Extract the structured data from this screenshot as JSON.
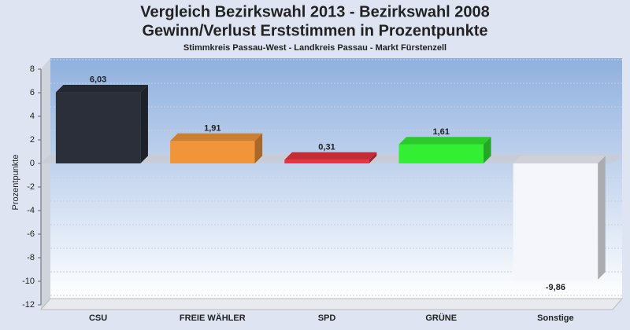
{
  "chart_data": {
    "type": "bar",
    "title": "Vergleich Bezirkswahl 2013 - Bezirkswahl 2008",
    "subtitle": "Gewinn/Verlust Erststimmen in Prozentpunkte",
    "caption": "Stimmkreis Passau-West - Landkreis Passau - Markt Fürstenzell",
    "y_label": "Prozentpunkte",
    "categories": [
      "CSU",
      "FREIE WÄHLER",
      "SPD",
      "GRÜNE",
      "Sonstige"
    ],
    "values": [
      6.03,
      1.91,
      0.31,
      1.61,
      -9.86
    ],
    "value_labels": [
      "6,03",
      "1,91",
      "0,31",
      "1,61",
      "-9,86"
    ],
    "colors": [
      "#2a2f3a",
      "#f0953a",
      "#e8343f",
      "#33ee33",
      "#f4f6fc"
    ],
    "ylim": [
      -12,
      8
    ],
    "yticks": [
      8,
      6,
      4,
      2,
      0,
      -2,
      -4,
      -6,
      -8,
      -10,
      -12
    ],
    "grid": true
  }
}
